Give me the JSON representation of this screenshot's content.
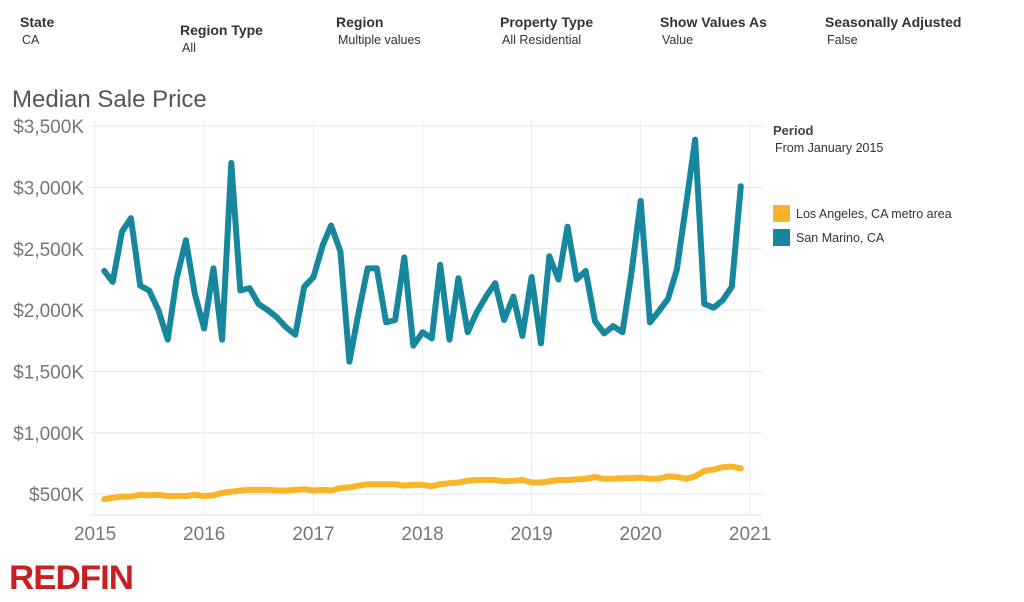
{
  "filters": [
    {
      "label": "State",
      "value": "CA"
    },
    {
      "label": "Region Type",
      "value": "All"
    },
    {
      "label": "Region",
      "value": "Multiple values"
    },
    {
      "label": "Property Type",
      "value": "All Residential"
    },
    {
      "label": "Show Values As",
      "value": "Value"
    },
    {
      "label": "Seasonally Adjusted",
      "value": "False"
    }
  ],
  "legend": {
    "title": "Period",
    "subtitle": "From January 2015"
  },
  "logo": {
    "text": "REDFIN",
    "color": "#c82021"
  },
  "chart_data": {
    "type": "line",
    "title": "Median Sale Price",
    "xlabel": "",
    "ylabel": "",
    "x_tick_labels": [
      "2015",
      "2016",
      "2017",
      "2018",
      "2019",
      "2020",
      "2021"
    ],
    "y_tick_labels": [
      "$500K",
      "$1,000K",
      "$1,500K",
      "$2,000K",
      "$2,500K",
      "$3,000K",
      "$3,500K"
    ],
    "y_ticks": [
      500,
      1000,
      1500,
      2000,
      2500,
      3000,
      3500
    ],
    "xlim": [
      "2014-12-15",
      "2021-02-10"
    ],
    "ylim": [
      330,
      3550
    ],
    "y_unit": "$K",
    "grid": true,
    "legend_position": "right",
    "x": [
      "2015-02",
      "2015-03",
      "2015-04",
      "2015-05",
      "2015-06",
      "2015-07",
      "2015-08",
      "2015-09",
      "2015-10",
      "2015-11",
      "2015-12",
      "2016-01",
      "2016-02",
      "2016-03",
      "2016-04",
      "2016-05",
      "2016-06",
      "2016-07",
      "2016-08",
      "2016-09",
      "2016-10",
      "2016-11",
      "2016-12",
      "2017-01",
      "2017-02",
      "2017-03",
      "2017-04",
      "2017-05",
      "2017-06",
      "2017-07",
      "2017-08",
      "2017-09",
      "2017-10",
      "2017-11",
      "2017-12",
      "2018-01",
      "2018-02",
      "2018-03",
      "2018-04",
      "2018-05",
      "2018-06",
      "2018-07",
      "2018-08",
      "2018-09",
      "2018-10",
      "2018-11",
      "2018-12",
      "2019-01",
      "2019-02",
      "2019-03",
      "2019-04",
      "2019-05",
      "2019-06",
      "2019-07",
      "2019-08",
      "2019-09",
      "2019-10",
      "2019-11",
      "2019-12",
      "2020-01",
      "2020-02",
      "2020-03",
      "2020-04",
      "2020-05",
      "2020-06",
      "2020-07",
      "2020-08",
      "2020-09",
      "2020-10",
      "2020-11",
      "2020-12"
    ],
    "series": [
      {
        "name": "Los Angeles, CA metro area",
        "color": "#f9b52a",
        "values": [
          460,
          470,
          480,
          480,
          495,
          490,
          495,
          485,
          485,
          485,
          495,
          485,
          490,
          510,
          520,
          530,
          535,
          535,
          535,
          530,
          530,
          535,
          540,
          530,
          535,
          530,
          550,
          555,
          570,
          580,
          580,
          580,
          580,
          570,
          575,
          575,
          565,
          580,
          590,
          595,
          610,
          615,
          615,
          615,
          605,
          610,
          615,
          595,
          595,
          605,
          615,
          615,
          620,
          625,
          640,
          625,
          625,
          630,
          630,
          635,
          625,
          625,
          645,
          640,
          625,
          645,
          690,
          700,
          720,
          725,
          710
        ]
      },
      {
        "name": "San Marino, CA",
        "color": "#17879e",
        "values": [
          2320,
          2230,
          2640,
          2750,
          2200,
          2160,
          2000,
          1760,
          2260,
          2570,
          2130,
          1850,
          2340,
          1760,
          3200,
          2160,
          2180,
          2050,
          2000,
          1940,
          1860,
          1800,
          2190,
          2270,
          2530,
          2690,
          2480,
          1580,
          1980,
          2340,
          2340,
          1900,
          1920,
          2430,
          1710,
          1820,
          1770,
          2370,
          1760,
          2260,
          1820,
          1980,
          2110,
          2220,
          1920,
          2110,
          1790,
          2270,
          1730,
          2440,
          2250,
          2680,
          2250,
          2320,
          1910,
          1810,
          1870,
          1820,
          2300,
          2890,
          1900,
          1990,
          2090,
          2330,
          2860,
          3390,
          2050,
          2020,
          2080,
          2190,
          3010
        ]
      }
    ]
  }
}
